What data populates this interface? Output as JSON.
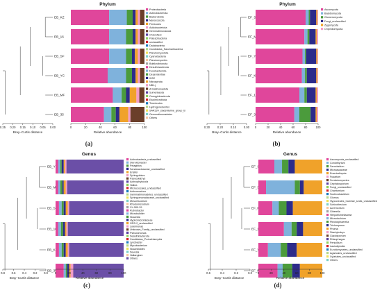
{
  "colors": {
    "palette": [
      "#e0469b",
      "#7fb2dc",
      "#4b9b3c",
      "#2d2b8a",
      "#f0a22a",
      "#f29ec7",
      "#6b3f2a",
      "#5b3fa0",
      "#8ecf5b",
      "#d3222a",
      "#1b7bbd",
      "#b7d88b",
      "#efe25a",
      "#7bd0c8",
      "#f7c7a0",
      "#a2a2a2"
    ],
    "genus_dominant": "#6b4fa7",
    "tree": "#555555"
  },
  "chart_data": [
    {
      "id": "a",
      "panel_label": "(a)",
      "type": "bar",
      "title": "Phylum",
      "xlabel": "Relative abundance",
      "tree_xlabel": "Bray–Curtis distance",
      "tree_ticks": [
        "0.25",
        "0.20",
        "0.15",
        "0.10",
        "0.05",
        "0.00"
      ],
      "xticks": [
        "0",
        "20",
        "40",
        "60",
        "80",
        "100"
      ],
      "categories": [
        "EB_KZ",
        "EB_16",
        "EB_SF",
        "EB_YC",
        "EB_MF",
        "EB_35"
      ],
      "series": [
        {
          "name": "Proteobacteria",
          "values": [
            52,
            52,
            52,
            50,
            57,
            45
          ]
        },
        {
          "name": "Actinobacteriota",
          "values": [
            24,
            23,
            23,
            25,
            12,
            10
          ]
        },
        {
          "name": "Bacteroidota",
          "values": [
            8,
            9,
            8,
            8,
            6,
            6
          ]
        },
        {
          "name": "Myxococcota",
          "values": [
            4,
            4,
            4,
            5,
            5,
            5
          ]
        },
        {
          "name": "Firmicutes",
          "values": [
            3,
            3,
            4,
            3,
            9,
            12
          ]
        },
        {
          "name": "Acidobacteriota",
          "values": [
            3,
            3,
            3,
            3,
            4,
            3
          ]
        },
        {
          "name": "Others",
          "values": [
            6,
            6,
            6,
            6,
            7,
            19
          ]
        }
      ],
      "legend": [
        "Proteobacteria",
        "Actinobacteriota",
        "Bacteroidota",
        "Myxococcota",
        "Firmicutes",
        "Acidobacteriota",
        "Gemmatimonadota",
        "Chloroflexi",
        "Patescibacteria",
        "unclassified",
        "Dadabacteria",
        "Candidatus_Saccharibacteria",
        "Planctomycetota",
        "Cyanobacteria",
        "Planctomycetes",
        "Bdellovibrionota",
        "Desulfobacterota",
        "Fusobacteriota",
        "Dependentiae",
        "WS2",
        "Nitrospirota",
        "NB1-j",
        "Armatimonadota",
        "Sumerlaeota",
        "Campylobacterota",
        "Elusimicrobiota",
        "Tenericutes",
        "Hydrogenedentes",
        "SAR324_cladeMarine_group_B",
        "Gemmatimonadetes",
        "Others"
      ]
    },
    {
      "id": "b",
      "panel_label": "(b)",
      "type": "bar",
      "title": "Phylum",
      "xlabel": "Relative abundance",
      "tree_xlabel": "Bray–Curtis distance",
      "tree_ticks": [
        "0.30",
        "0.20",
        "0.10",
        "0.00"
      ],
      "xticks": [
        "0",
        "20",
        "40",
        "60",
        "80",
        "100"
      ],
      "categories": [
        "EF_SF",
        "EF_MF",
        "EF_YC",
        "EF_KZ",
        "EF_16",
        "EF_35"
      ],
      "series": [
        {
          "name": "Ascomycota",
          "values": [
            80,
            78,
            75,
            74,
            70,
            62
          ]
        },
        {
          "name": "Basidiomycota",
          "values": [
            5,
            5,
            4,
            5,
            8,
            8
          ]
        },
        {
          "name": "Glomeromycota",
          "values": [
            2,
            3,
            2,
            3,
            4,
            18
          ]
        },
        {
          "name": "Fungi_unclassified",
          "values": [
            10,
            10,
            16,
            15,
            14,
            8
          ]
        },
        {
          "name": "Zygomycota",
          "values": [
            2,
            2,
            2,
            2,
            2,
            2
          ]
        },
        {
          "name": "Chytridiomycota",
          "values": [
            1,
            2,
            1,
            1,
            2,
            2
          ]
        }
      ],
      "legend": [
        "Ascomycota",
        "Basidiomycota",
        "Glomeromycota",
        "Fungi_unclassified",
        "Zygomycota",
        "Chytridiomycota"
      ]
    },
    {
      "id": "c",
      "panel_label": "(c)",
      "type": "bar",
      "title": "Genus",
      "xlabel": "Relative abundance",
      "tree_xlabel": "Bray–Curtis distance",
      "tree_ticks": [
        "0.8",
        "0.6",
        "0.4",
        "0.2",
        "0.0"
      ],
      "xticks": [
        "0",
        "20",
        "40",
        "60",
        "80",
        "100"
      ],
      "categories": [
        "EB_YC",
        "EB_MF",
        "EB_SF",
        "EB_16",
        "EB_KZ",
        "EB_35"
      ],
      "series": [
        {
          "name": "Actinobacteria_unclassified",
          "values": [
            4,
            4,
            5,
            4,
            5,
            12
          ]
        },
        {
          "name": "Steroidobacter",
          "values": [
            3,
            3,
            4,
            4,
            4,
            3
          ]
        },
        {
          "name": "Pelagibius",
          "values": [
            2,
            3,
            3,
            3,
            3,
            2
          ]
        },
        {
          "name": "Sandaracinaceae_unclassified",
          "values": [
            3,
            2,
            3,
            3,
            3,
            3
          ]
        },
        {
          "name": "Pseudolabrys",
          "values": [
            2,
            3,
            3,
            2,
            3,
            2
          ]
        },
        {
          "name": "Ensifer",
          "values": [
            2,
            2,
            2,
            2,
            2,
            4
          ]
        },
        {
          "name": "Others",
          "values": [
            84,
            83,
            80,
            82,
            80,
            74
          ]
        }
      ],
      "legend": [
        "Actinobacteria_unclassified",
        "Steroidobacter",
        "Pelagibius",
        "Sandaracinaceae_unclassified",
        "Ensifer",
        "Sphingobium",
        "Pseudolabrys",
        "Actinophytocola",
        "Haliea",
        "Micrococcales_unclassified",
        "Actinomadura",
        "Gemmatimonadetes_unclassified",
        "Sphingomonadaceae_unclassified",
        "Mesorhizobium",
        "Rhodomicrobium",
        "CL-500-29",
        "Rubrobacter",
        "Microbulbifer",
        "Nocardia",
        "Hyphomicrobiaceae",
        "GRS-2_unclassified",
        "Luteimonas",
        "Unknown_Family_unclassified",
        "Pseudomonas",
        "Desulfobacterota",
        "Candidatus_Protochlamydia",
        "Lysobacter",
        "Mycobacterium",
        "Nocardioides",
        "Devosia",
        "Haliangium",
        "Others"
      ]
    },
    {
      "id": "d",
      "panel_label": "(d)",
      "type": "bar",
      "title": "Genus",
      "xlabel": "Relative abundance",
      "tree_xlabel": "Bray–Curtis distance",
      "tree_ticks": [
        "0.6",
        "0.4",
        "0.2",
        "0.0"
      ],
      "xticks": [
        "0",
        "20",
        "40",
        "60",
        "80",
        "100"
      ],
      "categories": [
        "EF_SF",
        "EF_35",
        "EF_MF",
        "EF_16",
        "EF_YC",
        "EF_KZ"
      ],
      "series": [
        {
          "name": "Ascomycota_unclassified",
          "values": [
            25,
            12,
            22,
            40,
            15,
            30
          ]
        },
        {
          "name": "Coniothyrium",
          "values": [
            12,
            45,
            10,
            12,
            20,
            8
          ]
        },
        {
          "name": "Sarocladium",
          "values": [
            10,
            8,
            12,
            8,
            10,
            15
          ]
        },
        {
          "name": "Microascaceae",
          "values": [
            10,
            6,
            10,
            10,
            15,
            12
          ]
        },
        {
          "name": "Others",
          "values": [
            43,
            29,
            46,
            30,
            40,
            35
          ]
        }
      ],
      "legend": [
        "Ascomycota_unclassified",
        "Coniothyrium",
        "Sarocladium",
        "Microascaceae",
        "Emericellopsis",
        "Fusarium",
        "Sordariomycetes",
        "Cephalosporium",
        "Fungi_unclassified",
        "Chaetomium",
        "Scolecobasidium",
        "Glomus",
        "Hypocreales_Incertae_sedis_unclassified",
        "Schizothecium",
        "Acremonium",
        "Giberella",
        "Herpotrichiellaceae",
        "Microdochium",
        "Plectosphaerella",
        "Trichosporon",
        "Phoma",
        "Stachybotrys",
        "Cladosporium",
        "Rhizophagus",
        "Penicillium",
        "Lasiodiplodia",
        "Eurotiomycetes_unclassified",
        "Agaricales_unclassified",
        "Xylariales_unclassified",
        "Others"
      ]
    }
  ]
}
